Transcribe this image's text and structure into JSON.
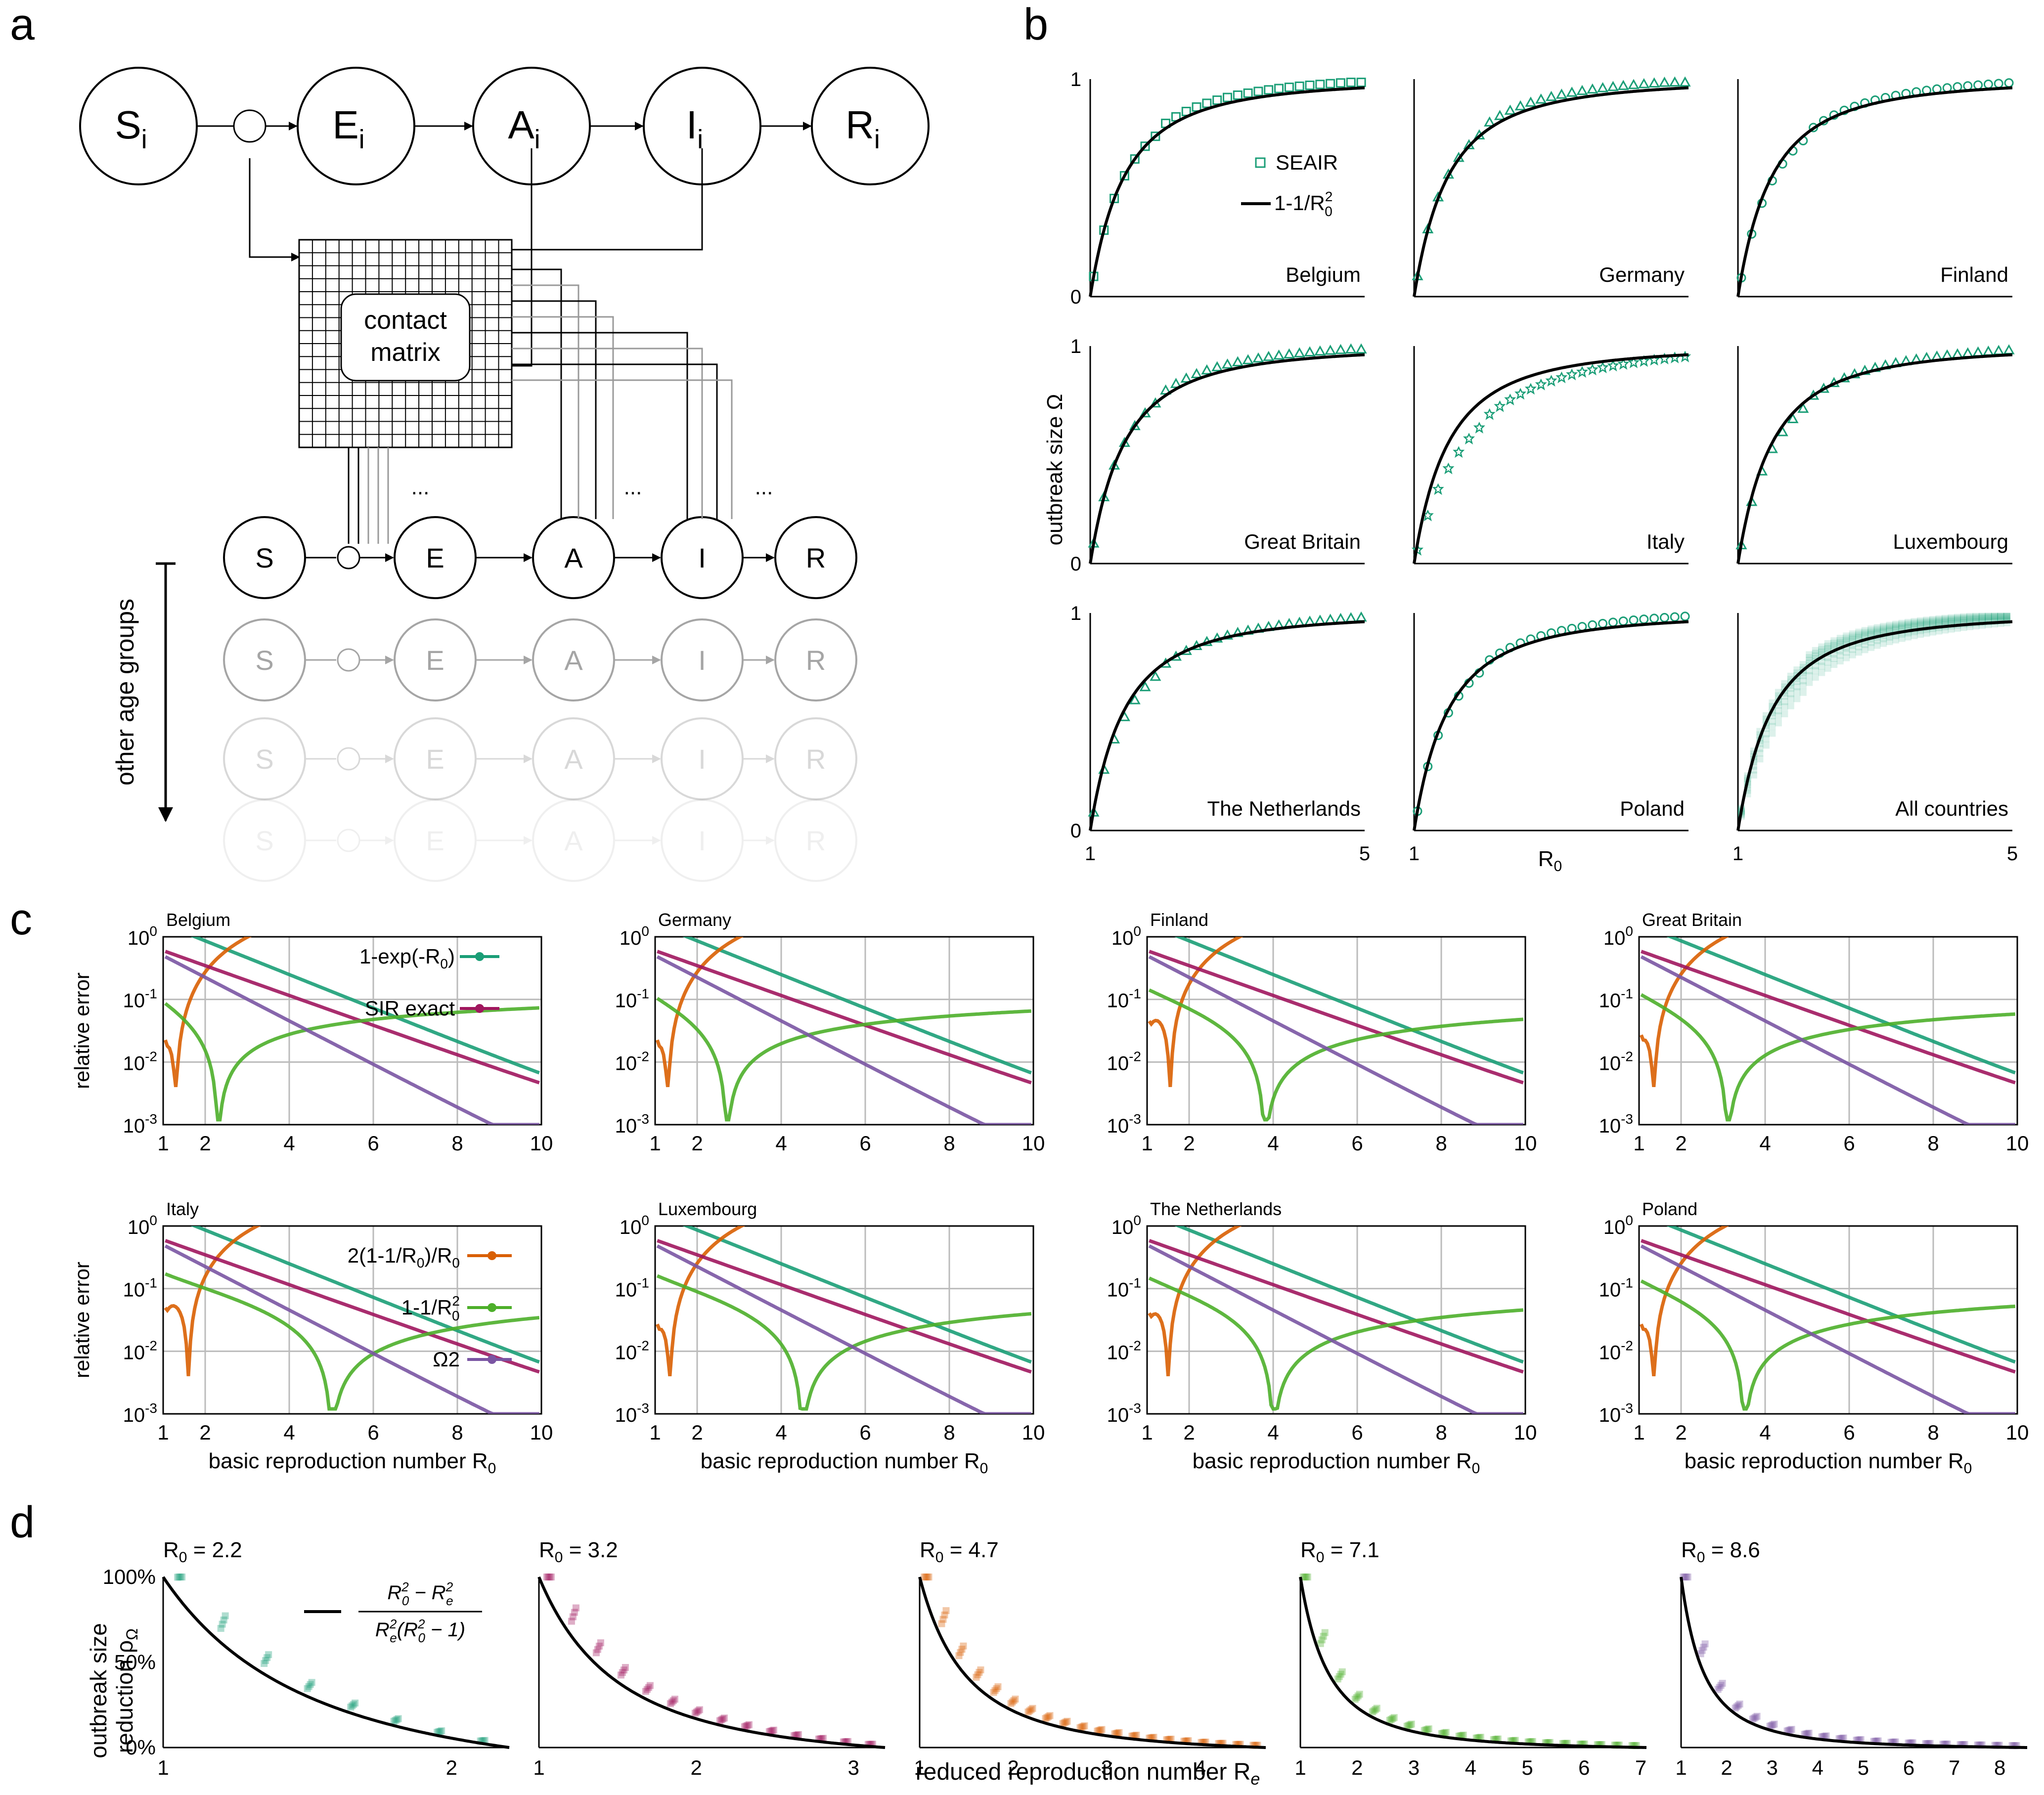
{
  "panel_labels": {
    "a": "a",
    "b": "b",
    "c": "c",
    "d": "d"
  },
  "diagram": {
    "top_nodes": [
      "S",
      "E",
      "A",
      "I",
      "R"
    ],
    "top_subscript": "i",
    "group_nodes": [
      "S",
      "E",
      "A",
      "I",
      "R"
    ],
    "contact_matrix": [
      "contact",
      "matrix"
    ],
    "ellipsis": "...",
    "other_groups": "other age groups"
  },
  "colors": {
    "teal": "#1b9e77",
    "orange": "#d95f02",
    "magenta": "#a0165e",
    "green": "#4daf2a",
    "purple": "#7a55a3"
  },
  "panel_b": {
    "ylabel": "outbreak size Ω",
    "xlabel": "R",
    "xlabel_sub": "0",
    "legend_series": "SEAIR",
    "legend_curve": "1-1/R",
    "legend_curve_sup": "2",
    "legend_curve_sub": "0",
    "yticks": [
      "0",
      "1"
    ],
    "xticks": [
      "1",
      "5"
    ],
    "countries": [
      "Belgium",
      "Germany",
      "Finland",
      "Great Britain",
      "Italy",
      "Luxembourg",
      "The Netherlands",
      "Poland",
      "All countries"
    ]
  },
  "panel_c": {
    "ylabel": "relative error",
    "xlabel": "basic reproduction number R",
    "xlabel_sub": "0",
    "xticks": [
      "1",
      "2",
      "4",
      "6",
      "8",
      "10"
    ],
    "yexp": [
      "0",
      "-1",
      "-2",
      "-3"
    ],
    "ybase": "10",
    "countries": [
      "Belgium",
      "Germany",
      "Finland",
      "Great Britain",
      "Italy",
      "Luxembourg",
      "The Netherlands",
      "Poland"
    ],
    "legend_top": [
      "1-exp(-R",
      "SIR exact"
    ],
    "legend_bottom": [
      "2(1-1/R",
      "1-1/R",
      "Ω2"
    ]
  },
  "panel_d": {
    "ylabel": [
      "outbreak size",
      "reduction ρ"
    ],
    "ylabel_sub": "Ω",
    "xlabel": "reduced reproduction number R",
    "xlabel_sub": "e",
    "yticks": [
      "0%",
      "50%",
      "100%"
    ],
    "formula_num": "R",
    "formula_den": "R",
    "r0_values": [
      2.2,
      3.2,
      4.7,
      7.1,
      8.6
    ],
    "r0_prefix": "R",
    "r0_sub": "0",
    "r0_labels": [
      "= 2.2",
      "= 3.2",
      "= 4.7",
      "= 7.1",
      "= 8.6"
    ],
    "xticks": [
      [
        "1",
        "2"
      ],
      [
        "1",
        "2",
        "3"
      ],
      [
        "1",
        "2",
        "3",
        "4"
      ],
      [
        "1",
        "2",
        "3",
        "4",
        "5",
        "6",
        "7"
      ],
      [
        "1",
        "2",
        "3",
        "4",
        "5",
        "6",
        "7",
        "8"
      ]
    ]
  },
  "chart_data": [
    {
      "type": "scatter",
      "panel": "b",
      "title": "",
      "xlabel": "R0",
      "ylabel": "outbreak size Ω",
      "xlim": [
        1,
        5
      ],
      "ylim": [
        0,
        1
      ],
      "series": [
        {
          "name": "SEAIR"
        },
        {
          "name": "1-1/R0^2",
          "formula": "1-1/R0^2"
        }
      ],
      "note": "per-country SEAIR points vs 1-1/R0^2 curve"
    },
    {
      "type": "line",
      "panel": "c",
      "xlabel": "basic reproduction number R0",
      "ylabel": "relative error",
      "xlim": [
        1,
        10
      ],
      "ylim": [
        0.001,
        1
      ],
      "yscale": "log",
      "series": [
        {
          "name": "1-exp(-R0)"
        },
        {
          "name": "SIR exact"
        },
        {
          "name": "2(1-1/R0)/R0"
        },
        {
          "name": "1-1/R0^2"
        },
        {
          "name": "Ω2"
        }
      ]
    },
    {
      "type": "scatter",
      "panel": "d",
      "xlabel": "reduced reproduction number Re",
      "ylabel": "outbreak size reduction ρΩ",
      "ylim": [
        0,
        100
      ],
      "r0": [
        2.2,
        3.2,
        4.7,
        7.1,
        8.6
      ]
    }
  ]
}
